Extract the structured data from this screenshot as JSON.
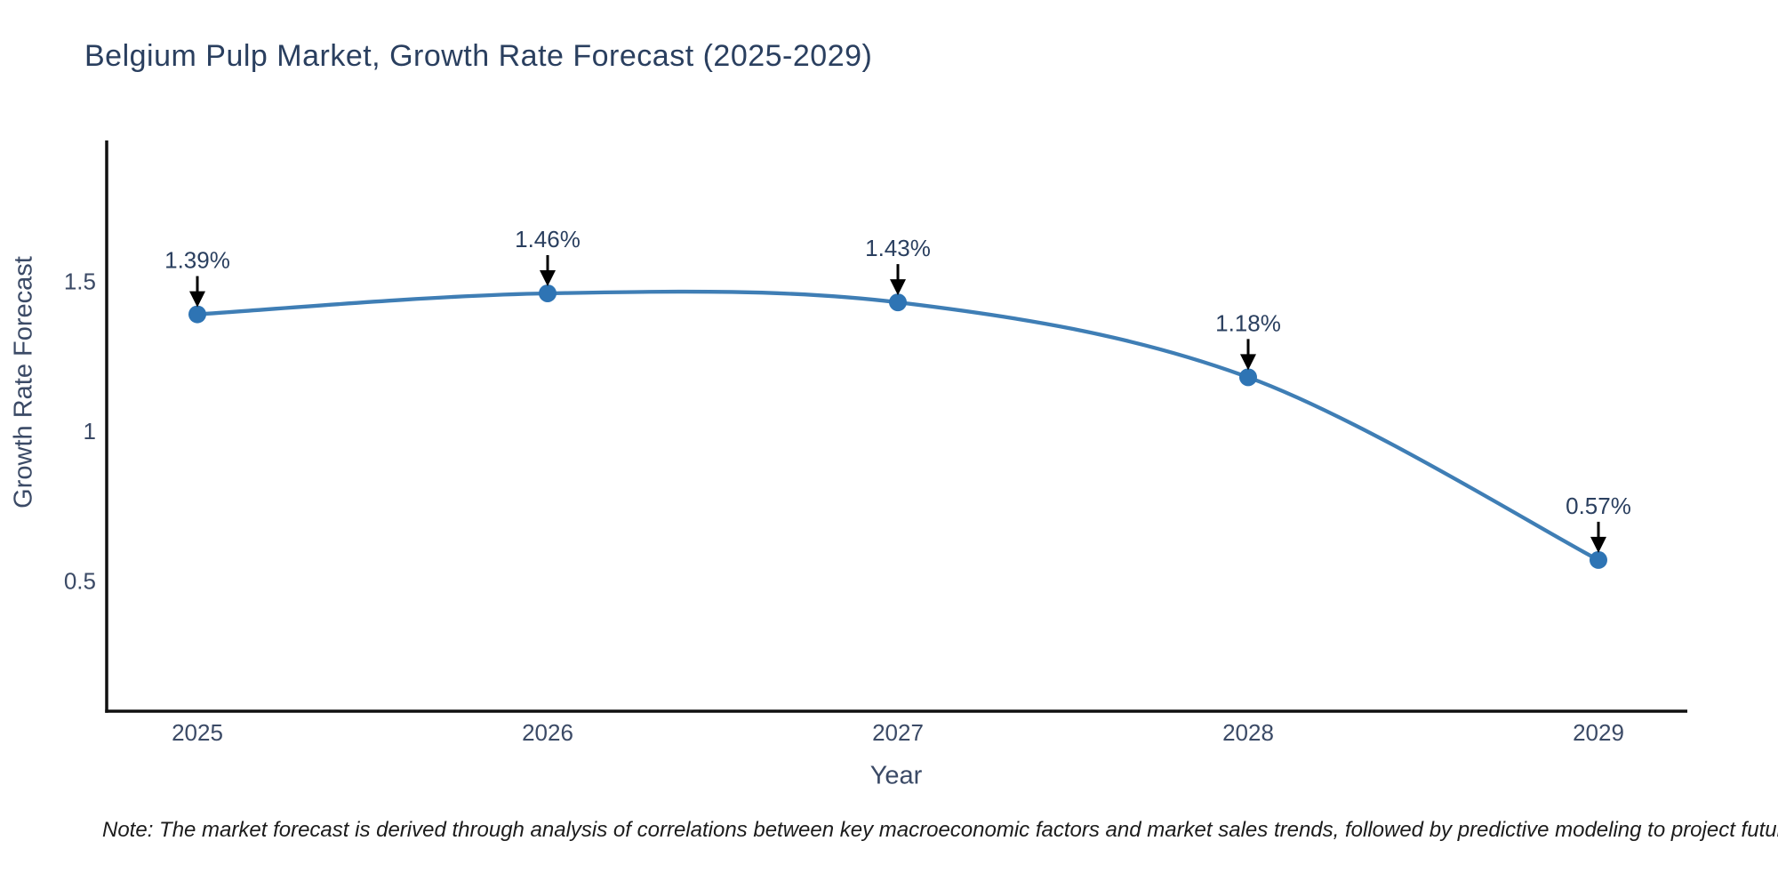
{
  "chart_data": {
    "type": "line",
    "title": "Belgium Pulp Market, Growth Rate Forecast (2025-2029)",
    "xlabel": "Year",
    "ylabel": "Growth Rate Forecast",
    "x": [
      2025,
      2026,
      2027,
      2028,
      2029
    ],
    "x_tick_labels": [
      "2025",
      "2026",
      "2027",
      "2028",
      "2029"
    ],
    "series": [
      {
        "name": "Growth Rate Forecast",
        "values": [
          1.39,
          1.46,
          1.43,
          1.18,
          0.57
        ],
        "point_labels": [
          "1.39%",
          "1.46%",
          "1.43%",
          "1.18%",
          "0.57%"
        ]
      }
    ],
    "y_ticks": [
      0.5,
      1,
      1.5
    ],
    "y_tick_labels": [
      "0.5",
      "1",
      "1.5"
    ],
    "ylim": [
      0.07,
      1.97
    ],
    "grid": false,
    "legend_position": "none",
    "line_shape": "spline",
    "line_color": "#3f7eb5",
    "marker_color": "#2e74b4",
    "arrow_color": "#000000",
    "axis_color": "#111111"
  },
  "note": "Note: The market forecast is derived through analysis of correlations between key macroeconomic factors and market sales trends, followed by predictive modeling to project future sales"
}
